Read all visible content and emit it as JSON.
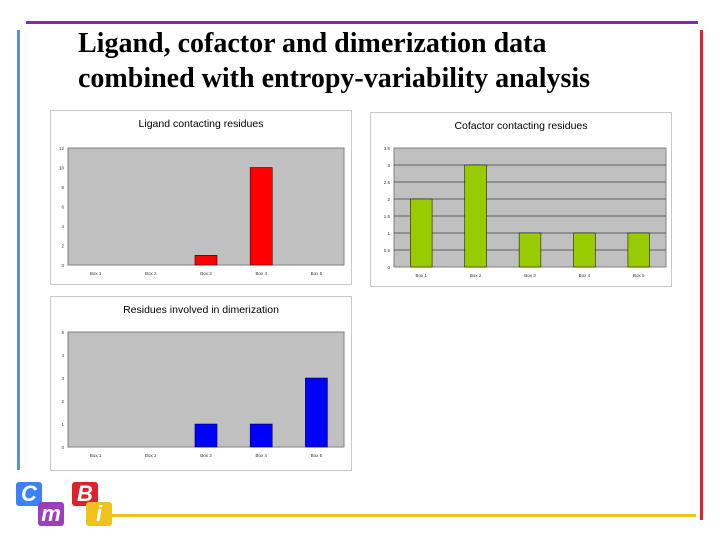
{
  "slide": {
    "title_line1": "Ligand, cofactor and dimerization data",
    "title_line2": "combined with entropy-variability analysis"
  },
  "logo": {
    "letters": [
      "C",
      "B",
      "m",
      "i"
    ]
  },
  "colors": {
    "plot_bg": "#c0c0c0",
    "border": "#808080",
    "red": "#ff0000",
    "green": "#99cc00",
    "blue": "#0000ff"
  },
  "chart_data": [
    {
      "type": "bar",
      "title": "Ligand contacting residues",
      "categories": [
        "Box 1",
        "Box 2",
        "Box 3",
        "Box 4",
        "Box 5"
      ],
      "values": [
        0,
        0,
        1,
        10,
        0
      ],
      "ylim": [
        0,
        12
      ],
      "yticks": [
        "0",
        "2",
        "4",
        "6",
        "8",
        "10",
        "12"
      ],
      "color": "#ff0000",
      "grid": false
    },
    {
      "type": "bar",
      "title": "Cofactor contacting residues",
      "categories": [
        "Box 1",
        "Box 2",
        "Box 3",
        "Box 4",
        "Box 5"
      ],
      "values": [
        2,
        3,
        1,
        1,
        1
      ],
      "ylim": [
        0,
        3.5
      ],
      "yticks": [
        "0",
        "0.5",
        "1",
        "1.5",
        "2",
        "2.5",
        "3",
        "3.5"
      ],
      "color": "#99cc00",
      "grid": true
    },
    {
      "type": "bar",
      "title": "Residues involved in dimerization",
      "categories": [
        "Box 1",
        "Box 2",
        "Box 3",
        "Box 4",
        "Box 5"
      ],
      "values": [
        0,
        0,
        1,
        1,
        3
      ],
      "ylim": [
        0,
        5
      ],
      "yticks": [
        "0",
        "1",
        "2",
        "3",
        "4",
        "5"
      ],
      "color": "#0000ff",
      "grid": false
    }
  ]
}
